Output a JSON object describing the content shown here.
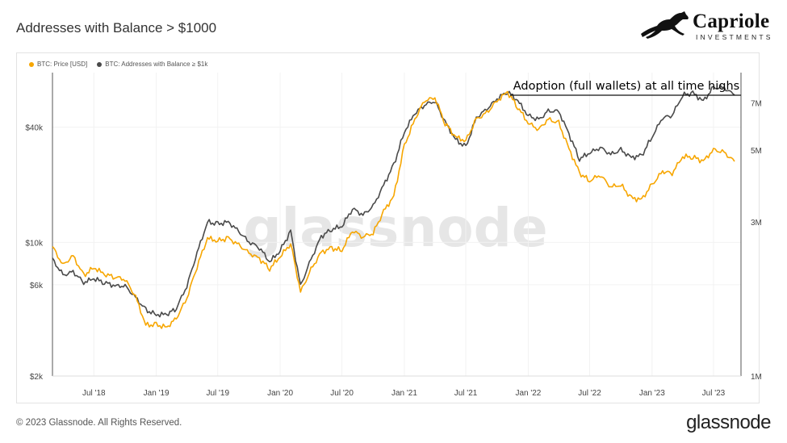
{
  "header": {
    "title": "Addresses with Balance > $1000"
  },
  "logo": {
    "name": "Capriole",
    "sub": "INVESTMENTS"
  },
  "legend": [
    {
      "label": "BTC: Price [USD]",
      "color": "#f7a600"
    },
    {
      "label": "BTC: Addresses with Balance ≥ $1k",
      "color": "#4a4a4a"
    }
  ],
  "watermark": "glassnode",
  "footer": {
    "copyright": "© 2023 Glassnode. All Rights Reserved.",
    "brand": "glassnode"
  },
  "chart_data": {
    "type": "line",
    "y_left_scale": "log",
    "y_right_scale": "log",
    "x_ticks": [
      "Jul '18",
      "Jan '19",
      "Jul '19",
      "Jan '20",
      "Jul '20",
      "Jan '21",
      "Jul '21",
      "Jan '22",
      "Jul '22",
      "Jan '23",
      "Jul '23"
    ],
    "y_left_ticks": [
      {
        "label": "$2k",
        "value": 2000
      },
      {
        "label": "$6k",
        "value": 6000
      },
      {
        "label": "$10k",
        "value": 10000
      },
      {
        "label": "$40k",
        "value": 40000
      }
    ],
    "y_right_ticks": [
      {
        "label": "1M",
        "value": 1000000
      },
      {
        "label": "3M",
        "value": 3000000
      },
      {
        "label": "5M",
        "value": 5000000
      },
      {
        "label": "7M",
        "value": 7000000
      }
    ],
    "ylim_left": [
      2000,
      70000
    ],
    "ylim_right": [
      1000000,
      8200000
    ],
    "annotation": "Adoption (full wallets) at all time highs",
    "x": [
      "2018-03",
      "2018-04",
      "2018-05",
      "2018-06",
      "2018-07",
      "2018-08",
      "2018-09",
      "2018-10",
      "2018-11",
      "2018-12",
      "2019-01",
      "2019-02",
      "2019-03",
      "2019-04",
      "2019-05",
      "2019-06",
      "2019-07",
      "2019-08",
      "2019-09",
      "2019-10",
      "2019-11",
      "2019-12",
      "2020-01",
      "2020-02",
      "2020-03",
      "2020-04",
      "2020-05",
      "2020-06",
      "2020-07",
      "2020-08",
      "2020-09",
      "2020-10",
      "2020-11",
      "2020-12",
      "2021-01",
      "2021-02",
      "2021-03",
      "2021-04",
      "2021-05",
      "2021-06",
      "2021-07",
      "2021-08",
      "2021-09",
      "2021-10",
      "2021-11",
      "2021-12",
      "2022-01",
      "2022-02",
      "2022-03",
      "2022-04",
      "2022-05",
      "2022-06",
      "2022-07",
      "2022-08",
      "2022-09",
      "2022-10",
      "2022-11",
      "2022-12",
      "2023-01",
      "2023-02",
      "2023-03",
      "2023-04",
      "2023-05",
      "2023-06",
      "2023-07",
      "2023-08",
      "2023-09"
    ],
    "series": [
      {
        "name": "BTC: Price [USD]",
        "color": "#f7a600",
        "axis": "left",
        "values": [
          9500,
          7600,
          8500,
          6700,
          7400,
          6800,
          6600,
          6400,
          5200,
          3700,
          3700,
          3600,
          4000,
          5100,
          7500,
          10500,
          10200,
          10500,
          9700,
          8800,
          8200,
          7300,
          8400,
          9900,
          5500,
          7200,
          8900,
          9300,
          9100,
          11500,
          10700,
          11200,
          14500,
          17500,
          32000,
          44000,
          55000,
          57000,
          42000,
          35500,
          34000,
          44000,
          47500,
          55000,
          61000,
          51000,
          42000,
          39000,
          44000,
          42000,
          31000,
          23000,
          21000,
          22500,
          19500,
          20000,
          17000,
          16800,
          20000,
          23500,
          23000,
          28000,
          28000,
          26500,
          30500,
          29500,
          26500
        ]
      },
      {
        "name": "BTC: Addresses with Balance ≥ $1k",
        "color": "#4a4a4a",
        "axis": "right",
        "values": [
          2300000,
          2050000,
          2100000,
          1950000,
          2000000,
          1950000,
          1900000,
          1900000,
          1750000,
          1600000,
          1550000,
          1550000,
          1620000,
          1900000,
          2400000,
          3000000,
          2950000,
          3000000,
          2800000,
          2600000,
          2500000,
          2250000,
          2450000,
          2800000,
          1900000,
          2300000,
          2700000,
          2850000,
          2900000,
          3300000,
          3150000,
          3350000,
          3900000,
          4500000,
          5700000,
          6500000,
          6900000,
          7100000,
          6100000,
          5400000,
          5100000,
          6300000,
          6700000,
          7200000,
          7600000,
          7100000,
          6400000,
          6200000,
          6600000,
          6600000,
          5600000,
          4700000,
          4900000,
          5100000,
          4850000,
          5000000,
          4750000,
          4800000,
          5500000,
          6300000,
          6400000,
          7400000,
          7500000,
          7100000,
          7800000,
          7800000,
          7400000
        ]
      }
    ]
  }
}
